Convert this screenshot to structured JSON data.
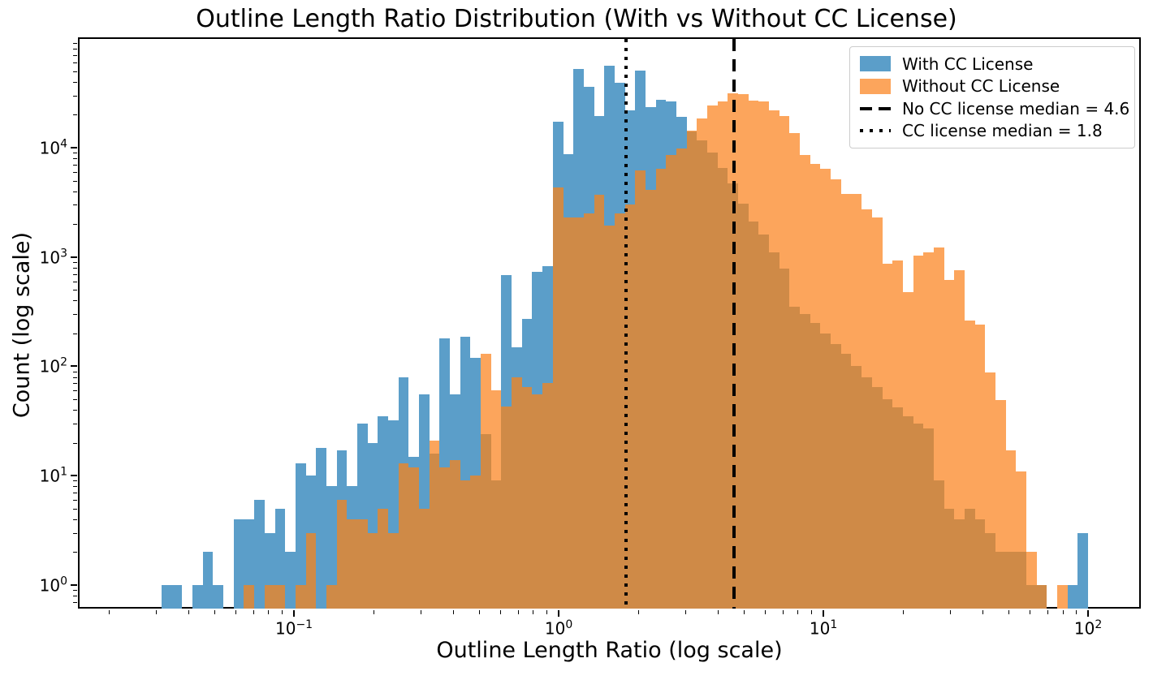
{
  "colors": {
    "blue_fill": "#5b9ec9",
    "orange_fill": "#fca55c",
    "overlap_fill": "#cf8a47",
    "axis": "#000000",
    "background": "#ffffff",
    "legend_border": "#cccccc"
  },
  "legend": {
    "items": [
      {
        "label": "With CC License",
        "marker": "patch",
        "color_key": "blue_fill"
      },
      {
        "label": "Without CC License",
        "marker": "patch",
        "color_key": "orange_fill"
      },
      {
        "label": "No CC license median = 4.6",
        "marker": "dashed-line",
        "color_key": "axis"
      },
      {
        "label": "CC license median = 1.8",
        "marker": "dotted-line",
        "color_key": "axis"
      }
    ]
  },
  "chart_data": {
    "type": "bar",
    "variant": "overlaid-log-histogram",
    "title": "Outline Length Ratio Distribution (With vs Without CC License)",
    "xlabel": "Outline Length Ratio (log scale)",
    "ylabel": "Count (log scale)",
    "x_scale": "log",
    "y_scale": "log",
    "grid": false,
    "legend_position": "upper right",
    "xlim_log10": [
      -1.813,
      2.196
    ],
    "ylim_log10": [
      -0.215,
      4.994
    ],
    "x_major_exponents": [
      -1,
      0,
      1,
      2
    ],
    "y_major_exponents": [
      0,
      1,
      2,
      3,
      4
    ],
    "bin_log10_start": -1.5,
    "bin_log10_width": 0.0388889,
    "n_bins": 90,
    "series": [
      {
        "name": "With CC License",
        "color_key": "blue_fill",
        "counts": [
          1,
          1,
          0,
          1,
          2,
          1,
          0,
          4,
          4,
          6,
          3,
          5,
          2,
          13,
          10,
          18,
          8,
          17,
          8,
          30,
          20,
          35,
          32,
          80,
          15,
          55,
          16,
          180,
          55,
          185,
          120,
          24,
          9,
          680,
          150,
          270,
          730,
          830,
          17400,
          8700,
          52000,
          36000,
          19500,
          56000,
          39000,
          22000,
          50500,
          23600,
          27200,
          26500,
          19000,
          14000,
          11600,
          9000,
          6500,
          4700,
          3100,
          2100,
          1600,
          1100,
          780,
          350,
          300,
          250,
          200,
          160,
          130,
          100,
          80,
          65,
          50,
          42,
          35,
          30,
          27,
          9,
          5,
          4,
          5,
          4,
          3,
          2,
          2,
          2,
          1,
          1,
          0,
          0,
          1,
          3
        ]
      },
      {
        "name": "Without CC License",
        "color_key": "orange_fill",
        "counts": [
          0,
          0,
          0,
          0,
          0,
          0,
          0,
          0,
          1,
          0,
          1,
          1,
          0,
          1,
          3,
          0,
          1,
          6,
          4,
          4,
          3,
          5,
          3,
          13,
          12,
          5,
          21,
          12,
          14,
          9,
          10,
          130,
          60,
          43,
          80,
          65,
          55,
          70,
          4300,
          2300,
          2300,
          2500,
          3700,
          1950,
          2500,
          3000,
          6200,
          4100,
          6400,
          8500,
          9800,
          14200,
          18500,
          24500,
          26300,
          31600,
          31000,
          27000,
          26300,
          21800,
          19400,
          13600,
          8600,
          7100,
          6400,
          5100,
          3800,
          3750,
          2740,
          2300,
          875,
          930,
          480,
          1030,
          1100,
          1230,
          620,
          760,
          263,
          240,
          88,
          49,
          17,
          11,
          2,
          1,
          0,
          1,
          0,
          0
        ]
      }
    ],
    "median_lines": [
      {
        "label": "No CC license median = 4.6",
        "value": 4.6,
        "style": "dashed"
      },
      {
        "label": "CC license median = 1.8",
        "value": 1.8,
        "style": "dotted"
      }
    ]
  }
}
